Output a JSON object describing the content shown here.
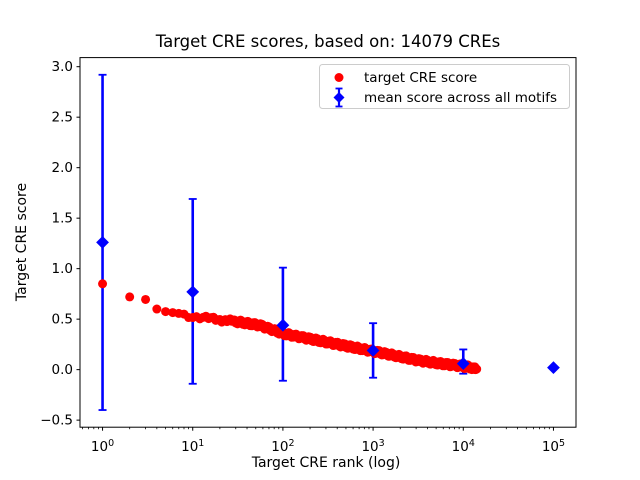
{
  "chart_data": {
    "type": "scatter",
    "title": "Target CRE scores, based on: 14079 CREs",
    "xlabel": "Target CRE rank (log)",
    "ylabel": "Target CRE score",
    "x_scale": "log",
    "n_cres": 14079,
    "grid": false,
    "legend_position": "upper right",
    "x_axis": {
      "lim_log10": [
        -0.25,
        5.25
      ],
      "ticks": [
        {
          "value": 1,
          "base": "10",
          "exponent": "0"
        },
        {
          "value": 10,
          "base": "10",
          "exponent": "1"
        },
        {
          "value": 100,
          "base": "10",
          "exponent": "2"
        },
        {
          "value": 1000,
          "base": "10",
          "exponent": "3"
        },
        {
          "value": 10000,
          "base": "10",
          "exponent": "4"
        },
        {
          "value": 100000,
          "base": "10",
          "exponent": "5"
        }
      ],
      "minor_tick_decades": [
        -1,
        0,
        1,
        2,
        3,
        4,
        5
      ]
    },
    "y_axis": {
      "lim": [
        -0.57,
        3.09
      ],
      "ticks": [
        {
          "value": 3.0,
          "label": "3.0"
        },
        {
          "value": 2.5,
          "label": "2.5"
        },
        {
          "value": 2.0,
          "label": "2.0"
        },
        {
          "value": 1.5,
          "label": "1.5"
        },
        {
          "value": 1.0,
          "label": "1.0"
        },
        {
          "value": 0.5,
          "label": "0.5"
        },
        {
          "value": 0.0,
          "label": "0.0"
        },
        {
          "value": -0.5,
          "label": "−0.5"
        }
      ]
    },
    "series": [
      {
        "name": "target CRE score",
        "color": "#ff0000",
        "marker": "circle",
        "marker_radius_px": 4.5,
        "rank_range": [
          1,
          14079
        ],
        "trend_log10rank_score": [
          [
            0.0,
            0.85
          ],
          [
            0.301,
            0.72
          ],
          [
            0.477,
            0.695
          ],
          [
            0.602,
            0.6
          ],
          [
            0.699,
            0.575
          ],
          [
            0.778,
            0.565
          ],
          [
            0.903,
            0.55
          ],
          [
            1.0,
            0.525
          ],
          [
            1.25,
            0.5
          ],
          [
            1.5,
            0.475
          ],
          [
            1.75,
            0.44
          ],
          [
            2.0,
            0.36
          ],
          [
            2.25,
            0.315
          ],
          [
            2.5,
            0.27
          ],
          [
            2.75,
            0.225
          ],
          [
            3.0,
            0.18
          ],
          [
            3.25,
            0.135
          ],
          [
            3.5,
            0.09
          ],
          [
            3.75,
            0.06
          ],
          [
            4.0,
            0.035
          ],
          [
            4.1,
            0.02
          ],
          [
            4.1485,
            0.0
          ]
        ]
      },
      {
        "name": "mean score across all motifs",
        "color": "#0000ff",
        "marker": "diamond",
        "marker_half_px": 6.4,
        "points": [
          {
            "rank": 1,
            "mean": 1.26,
            "lo": -0.4,
            "hi": 2.92
          },
          {
            "rank": 10,
            "mean": 0.77,
            "lo": -0.14,
            "hi": 1.69
          },
          {
            "rank": 100,
            "mean": 0.44,
            "lo": -0.11,
            "hi": 1.01
          },
          {
            "rank": 1000,
            "mean": 0.19,
            "lo": -0.08,
            "hi": 0.46
          },
          {
            "rank": 10000,
            "mean": 0.06,
            "lo": -0.04,
            "hi": 0.2
          },
          {
            "rank": 100000,
            "mean": 0.02,
            "lo": 0.02,
            "hi": 0.02
          }
        ]
      }
    ],
    "legend": {
      "entries": [
        "target CRE score",
        "mean score across all motifs"
      ],
      "frame_color": "#cccccc"
    }
  }
}
